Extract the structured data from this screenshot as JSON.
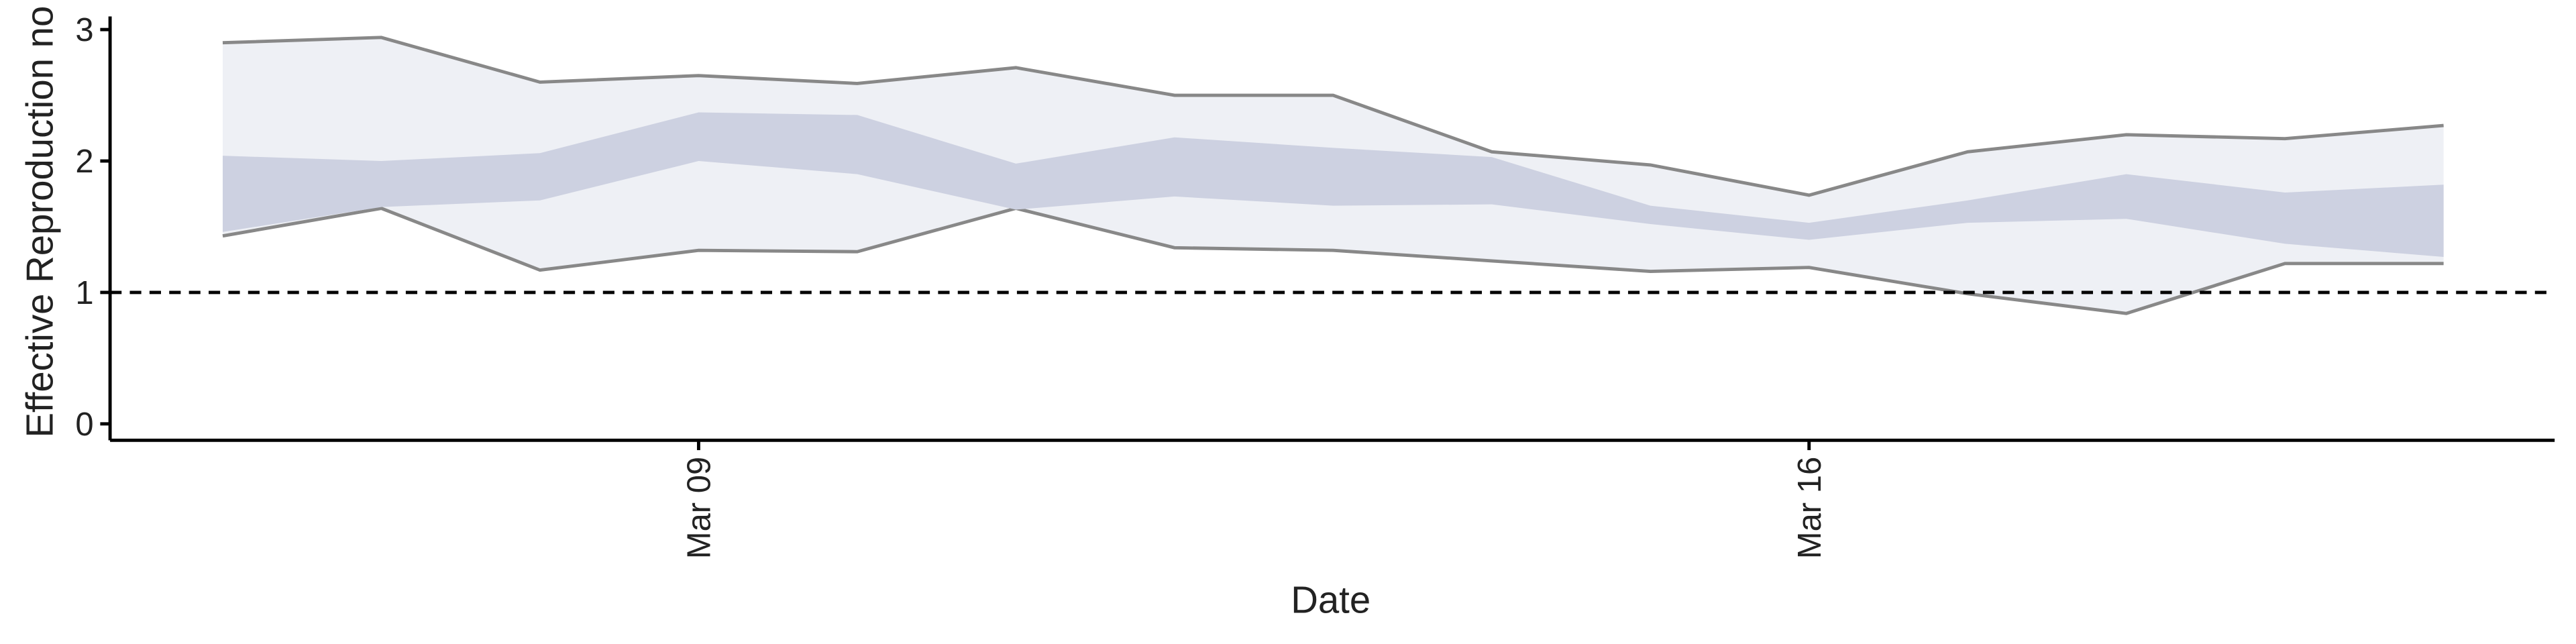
{
  "chart_data": {
    "type": "ribbon",
    "xlabel": "Date",
    "ylabel": "Effective Reproduction no",
    "x": [
      6,
      7,
      8,
      9,
      10,
      11,
      12,
      13,
      14,
      15,
      16,
      17,
      18,
      19,
      20
    ],
    "series": [
      {
        "color": "#eef0f5",
        "line_color": "#888888",
        "upper": [
          2.9,
          2.94,
          2.6,
          2.65,
          2.59,
          2.71,
          2.5,
          2.5,
          2.07,
          1.97,
          1.74,
          2.07,
          2.2,
          2.17,
          2.27
        ],
        "lower": [
          1.43,
          1.64,
          1.17,
          1.32,
          1.31,
          1.64,
          1.34,
          1.32,
          1.24,
          1.16,
          1.19,
          0.99,
          0.84,
          1.22,
          1.22
        ]
      },
      {
        "color": "#cdd1e1",
        "upper": [
          2.04,
          2.0,
          2.06,
          2.37,
          2.35,
          1.98,
          2.18,
          2.1,
          2.03,
          1.66,
          1.53,
          1.7,
          1.9,
          1.76,
          1.82
        ],
        "lower": [
          1.46,
          1.65,
          1.7,
          2.0,
          1.9,
          1.63,
          1.73,
          1.66,
          1.67,
          1.52,
          1.4,
          1.53,
          1.56,
          1.37,
          1.27
        ]
      }
    ],
    "hline": 1,
    "xlim": [
      5.29,
      20.7
    ],
    "xticks": [
      {
        "value": 9,
        "label": "Mar 09"
      },
      {
        "value": 16,
        "label": "Mar 16"
      }
    ],
    "ylim": [
      -0.125,
      3.1
    ],
    "yticks": [
      0,
      1,
      2,
      3
    ]
  }
}
